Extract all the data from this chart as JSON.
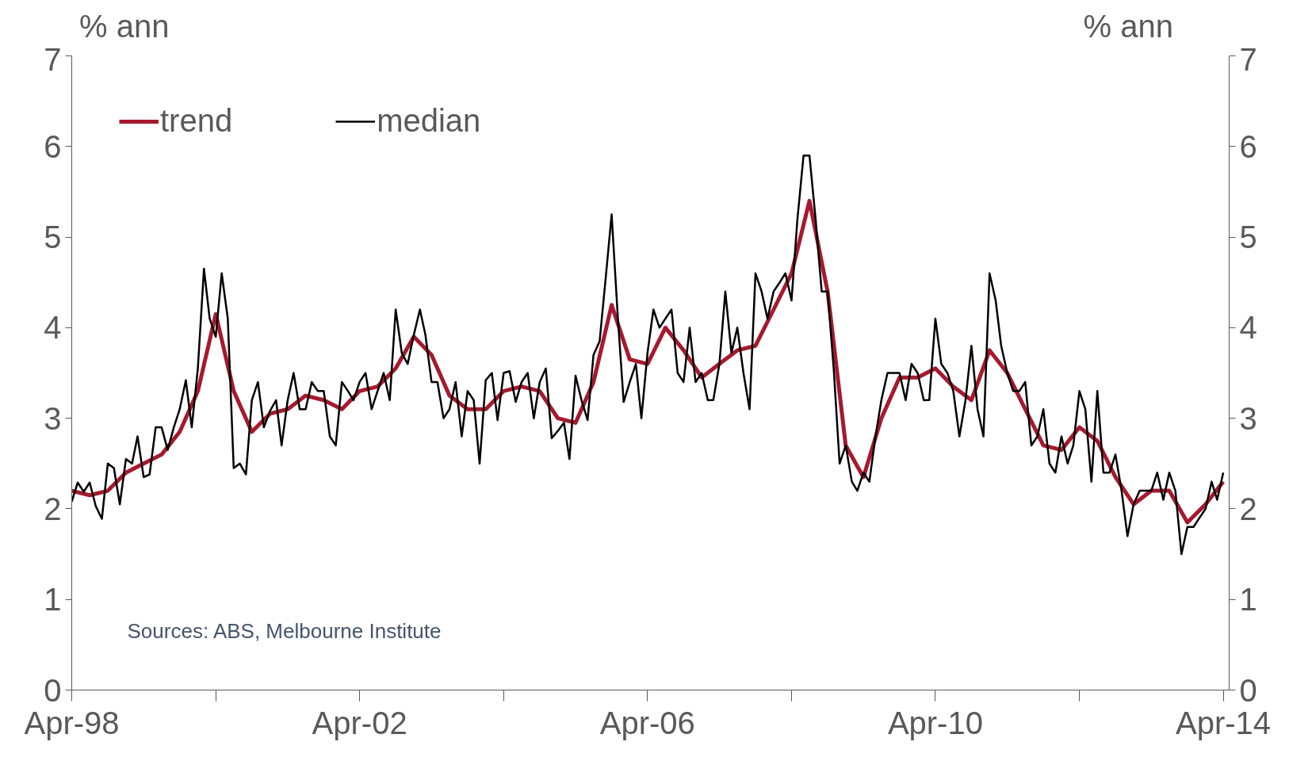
{
  "chart_data": {
    "type": "line",
    "ylabel": "% ann",
    "y2label": "% ann",
    "annotations": [
      "Sources: ABS, Melbourne Institute"
    ],
    "xlim": [
      "1998-04",
      "2014-05"
    ],
    "xticks": [
      {
        "value": "1998-04",
        "label": "Apr-98"
      },
      {
        "value": "2000-04",
        "label": null
      },
      {
        "value": "2002-04",
        "label": "Apr-02"
      },
      {
        "value": "2004-04",
        "label": null
      },
      {
        "value": "2006-04",
        "label": "Apr-06"
      },
      {
        "value": "2008-04",
        "label": null
      },
      {
        "value": "2010-04",
        "label": "Apr-10"
      },
      {
        "value": "2012-04",
        "label": null
      },
      {
        "value": "2014-04",
        "label": "Apr-14"
      }
    ],
    "ylim": [
      0,
      7
    ],
    "yticks": [
      0,
      1,
      2,
      3,
      4,
      5,
      6,
      7
    ],
    "y2lim": [
      0,
      7
    ],
    "y2ticks": [
      0,
      1,
      2,
      3,
      4,
      5,
      6,
      7
    ],
    "grid": false,
    "legend": "top left",
    "line_style": "solid",
    "marker": "none",
    "series": [
      {
        "name": "trend",
        "color": "#a6192e",
        "x": [
          "1998-04",
          "1998-07",
          "1998-10",
          "1999-01",
          "1999-04",
          "1999-07",
          "1999-10",
          "2000-01",
          "2000-04",
          "2000-07",
          "2000-10",
          "2001-01",
          "2001-04",
          "2001-07",
          "2001-10",
          "2002-01",
          "2002-04",
          "2002-07",
          "2002-10",
          "2003-01",
          "2003-04",
          "2003-07",
          "2003-10",
          "2004-01",
          "2004-04",
          "2004-07",
          "2004-10",
          "2005-01",
          "2005-04",
          "2005-07",
          "2005-10",
          "2006-01",
          "2006-04",
          "2006-07",
          "2006-10",
          "2007-01",
          "2007-04",
          "2007-07",
          "2007-10",
          "2008-01",
          "2008-04",
          "2008-07",
          "2008-10",
          "2009-01",
          "2009-04",
          "2009-07",
          "2009-10",
          "2010-01",
          "2010-04",
          "2010-07",
          "2010-10",
          "2011-01",
          "2011-04",
          "2011-07",
          "2011-10",
          "2012-01",
          "2012-04",
          "2012-07",
          "2012-10",
          "2013-01",
          "2013-04",
          "2013-07",
          "2013-10",
          "2014-01",
          "2014-04"
        ],
        "values": [
          2.2,
          2.15,
          2.2,
          2.4,
          2.5,
          2.6,
          2.85,
          3.3,
          4.15,
          3.3,
          2.85,
          3.05,
          3.1,
          3.25,
          3.2,
          3.1,
          3.3,
          3.35,
          3.55,
          3.9,
          3.7,
          3.25,
          3.1,
          3.1,
          3.3,
          3.35,
          3.3,
          3.0,
          2.95,
          3.4,
          4.25,
          3.65,
          3.6,
          4.0,
          3.75,
          3.45,
          3.6,
          3.75,
          3.8,
          4.2,
          4.6,
          5.4,
          4.4,
          2.7,
          2.35,
          3.0,
          3.45,
          3.45,
          3.55,
          3.35,
          3.2,
          3.75,
          3.5,
          3.1,
          2.7,
          2.65,
          2.9,
          2.75,
          2.35,
          2.05,
          2.2,
          2.2,
          1.85,
          2.05,
          2.3
        ]
      },
      {
        "name": "median",
        "color": "#000000",
        "x": [
          "1998-04",
          "1998-05",
          "1998-06",
          "1998-07",
          "1998-08",
          "1998-09",
          "1998-10",
          "1998-11",
          "1998-12",
          "1999-01",
          "1999-02",
          "1999-03",
          "1999-04",
          "1999-05",
          "1999-06",
          "1999-07",
          "1999-08",
          "1999-09",
          "1999-10",
          "1999-11",
          "1999-12",
          "2000-01",
          "2000-02",
          "2000-03",
          "2000-04",
          "2000-05",
          "2000-06",
          "2000-07",
          "2000-08",
          "2000-09",
          "2000-10",
          "2000-11",
          "2000-12",
          "2001-01",
          "2001-02",
          "2001-03",
          "2001-04",
          "2001-05",
          "2001-06",
          "2001-07",
          "2001-08",
          "2001-09",
          "2001-10",
          "2001-11",
          "2001-12",
          "2002-01",
          "2002-02",
          "2002-03",
          "2002-04",
          "2002-05",
          "2002-06",
          "2002-07",
          "2002-08",
          "2002-09",
          "2002-10",
          "2002-11",
          "2002-12",
          "2003-01",
          "2003-02",
          "2003-03",
          "2003-04",
          "2003-05",
          "2003-06",
          "2003-07",
          "2003-08",
          "2003-09",
          "2003-10",
          "2003-11",
          "2003-12",
          "2004-01",
          "2004-02",
          "2004-03",
          "2004-04",
          "2004-05",
          "2004-06",
          "2004-07",
          "2004-08",
          "2004-09",
          "2004-10",
          "2004-11",
          "2004-12",
          "2005-01",
          "2005-02",
          "2005-03",
          "2005-04",
          "2005-05",
          "2005-06",
          "2005-07",
          "2005-08",
          "2005-09",
          "2005-10",
          "2005-11",
          "2005-12",
          "2006-01",
          "2006-02",
          "2006-03",
          "2006-04",
          "2006-05",
          "2006-06",
          "2006-07",
          "2006-08",
          "2006-09",
          "2006-10",
          "2006-11",
          "2006-12",
          "2007-01",
          "2007-02",
          "2007-03",
          "2007-04",
          "2007-05",
          "2007-06",
          "2007-07",
          "2007-08",
          "2007-09",
          "2007-10",
          "2007-11",
          "2007-12",
          "2008-01",
          "2008-02",
          "2008-03",
          "2008-04",
          "2008-05",
          "2008-06",
          "2008-07",
          "2008-08",
          "2008-09",
          "2008-10",
          "2008-11",
          "2008-12",
          "2009-01",
          "2009-02",
          "2009-03",
          "2009-04",
          "2009-05",
          "2009-06",
          "2009-07",
          "2009-08",
          "2009-09",
          "2009-10",
          "2009-11",
          "2009-12",
          "2010-01",
          "2010-02",
          "2010-03",
          "2010-04",
          "2010-05",
          "2010-06",
          "2010-07",
          "2010-08",
          "2010-09",
          "2010-10",
          "2010-11",
          "2010-12",
          "2011-01",
          "2011-02",
          "2011-03",
          "2011-04",
          "2011-05",
          "2011-06",
          "2011-07",
          "2011-08",
          "2011-09",
          "2011-10",
          "2011-11",
          "2011-12",
          "2012-01",
          "2012-02",
          "2012-03",
          "2012-04",
          "2012-05",
          "2012-06",
          "2012-07",
          "2012-08",
          "2012-09",
          "2012-10",
          "2012-11",
          "2012-12",
          "2013-01",
          "2013-02",
          "2013-03",
          "2013-04",
          "2013-05",
          "2013-06",
          "2013-07",
          "2013-08",
          "2013-09",
          "2013-10",
          "2013-11",
          "2013-12",
          "2014-01",
          "2014-02",
          "2014-03",
          "2014-04"
        ],
        "values": [
          2.08,
          2.29,
          2.19,
          2.29,
          2.03,
          1.89,
          2.5,
          2.45,
          2.05,
          2.55,
          2.5,
          2.8,
          2.35,
          2.38,
          2.9,
          2.9,
          2.65,
          2.9,
          3.1,
          3.42,
          2.9,
          3.55,
          4.65,
          4.1,
          3.9,
          4.6,
          4.1,
          2.45,
          2.5,
          2.38,
          3.2,
          3.4,
          2.9,
          3.08,
          3.2,
          2.7,
          3.2,
          3.5,
          3.1,
          3.1,
          3.4,
          3.3,
          3.3,
          2.8,
          2.7,
          3.4,
          3.3,
          3.2,
          3.4,
          3.5,
          3.1,
          3.3,
          3.5,
          3.2,
          4.2,
          3.72,
          3.6,
          3.92,
          4.2,
          3.92,
          3.4,
          3.4,
          3.0,
          3.1,
          3.4,
          2.8,
          3.3,
          3.2,
          2.5,
          3.42,
          3.5,
          2.98,
          3.5,
          3.52,
          3.18,
          3.4,
          3.5,
          3.0,
          3.4,
          3.55,
          2.78,
          2.86,
          2.95,
          2.55,
          3.47,
          3.2,
          2.98,
          3.7,
          3.85,
          4.55,
          5.25,
          4.13,
          3.18,
          3.4,
          3.6,
          3.0,
          3.72,
          4.2,
          4.0,
          4.1,
          4.2,
          3.5,
          3.4,
          4.0,
          3.4,
          3.5,
          3.2,
          3.2,
          3.6,
          4.4,
          3.72,
          4.0,
          3.5,
          3.1,
          4.6,
          4.4,
          4.1,
          4.4,
          4.5,
          4.6,
          4.3,
          5.2,
          5.9,
          5.9,
          5.2,
          4.4,
          4.4,
          3.55,
          2.5,
          2.7,
          2.3,
          2.2,
          2.4,
          2.3,
          2.8,
          3.2,
          3.5,
          3.5,
          3.5,
          3.2,
          3.6,
          3.5,
          3.2,
          3.2,
          4.1,
          3.6,
          3.5,
          3.3,
          2.8,
          3.2,
          3.8,
          3.1,
          2.8,
          4.6,
          4.3,
          3.8,
          3.5,
          3.3,
          3.3,
          3.4,
          2.7,
          2.8,
          3.1,
          2.5,
          2.4,
          2.8,
          2.5,
          2.7,
          3.3,
          3.1,
          2.3,
          3.3,
          2.4,
          2.4,
          2.6,
          2.2,
          1.7,
          2.05,
          2.2,
          2.2,
          2.2,
          2.4,
          2.1,
          2.4,
          2.2,
          1.5,
          1.8,
          1.8,
          1.9,
          2.0,
          2.3,
          2.1,
          2.4
        ]
      }
    ]
  }
}
